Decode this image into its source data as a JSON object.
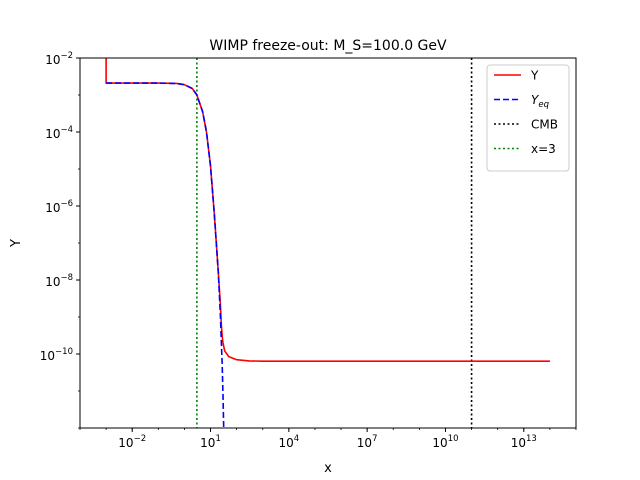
{
  "chart_data": {
    "type": "line",
    "title": "WIMP freeze-out: M_S=100.0 GeV",
    "xlabel": "x",
    "ylabel": "Y",
    "xscale": "log",
    "yscale": "log",
    "xlim": [
      0.0001,
      1000000000000000.0
    ],
    "ylim": [
      1e-12,
      0.01
    ],
    "x_ticks": [
      {
        "value": 0.01,
        "base": "10",
        "exp": "−2"
      },
      {
        "value": 10,
        "base": "10",
        "exp": "1"
      },
      {
        "value": 10000,
        "base": "10",
        "exp": "4"
      },
      {
        "value": 10000000.0,
        "base": "10",
        "exp": "7"
      },
      {
        "value": 10000000000.0,
        "base": "10",
        "exp": "10"
      },
      {
        "value": 10000000000000.0,
        "base": "10",
        "exp": "13"
      }
    ],
    "y_ticks": [
      {
        "value": 1e-10,
        "base": "10",
        "exp": "−10"
      },
      {
        "value": 1e-08,
        "base": "10",
        "exp": "−8"
      },
      {
        "value": 1e-06,
        "base": "10",
        "exp": "−6"
      },
      {
        "value": 0.0001,
        "base": "10",
        "exp": "−4"
      },
      {
        "value": 0.01,
        "base": "10",
        "exp": "−2"
      }
    ],
    "grid": false,
    "legend_position": "top-right",
    "series": [
      {
        "name": "Y",
        "label_main": "Y",
        "label_sub": "",
        "color": "#ff0000",
        "style": "solid",
        "x": [
          0.001,
          0.001,
          0.01,
          0.1,
          0.5,
          1,
          2,
          3,
          5,
          7,
          10,
          14,
          20,
          24,
          26,
          28,
          30,
          35,
          50,
          100,
          300,
          1000,
          10000,
          1000000.0,
          1000000000.0,
          1000000000000.0,
          100000000000000.0
        ],
        "y": [
          0.01,
          0.0021,
          0.0021,
          0.0021,
          0.00205,
          0.0019,
          0.0015,
          0.001,
          0.00035,
          0.0001,
          1.2e-05,
          6e-07,
          1.5e-08,
          2e-09,
          6e-10,
          3e-10,
          2e-10,
          1.2e-10,
          8.5e-11,
          7e-11,
          6.5e-11,
          6.4e-11,
          6.4e-11,
          6.4e-11,
          6.4e-11,
          6.4e-11,
          6.4e-11
        ]
      },
      {
        "name": "Yeq",
        "label_main": "Y",
        "label_sub": "eq",
        "color": "#0000ff",
        "style": "dashed",
        "x": [
          0.001,
          0.01,
          0.1,
          0.5,
          1,
          2,
          3,
          5,
          7,
          10,
          14,
          20,
          24,
          28,
          30,
          32
        ],
        "y": [
          0.0021,
          0.0021,
          0.0021,
          0.00205,
          0.0019,
          0.0015,
          0.001,
          0.00035,
          0.0001,
          1.2e-05,
          6e-07,
          1.5e-08,
          1e-09,
          5e-11,
          8e-12,
          1e-12
        ]
      }
    ],
    "vlines": [
      {
        "name": "CMB",
        "label": "CMB",
        "x": 100000000000.0,
        "color": "#000000",
        "style": "dotted"
      },
      {
        "name": "x=3",
        "label": "x=3",
        "x": 3,
        "color": "#008000",
        "style": "dotted"
      }
    ]
  }
}
